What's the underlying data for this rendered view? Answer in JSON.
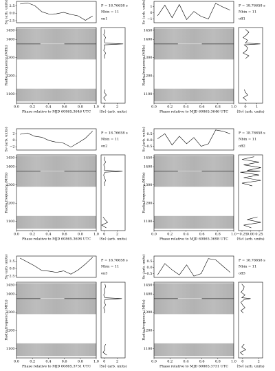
{
  "chart_data": [
    {
      "label": "on1",
      "period_text": "P = 18.76658 s",
      "nbin_text": "Nbin = 11",
      "profile": {
        "type": "line",
        "ylabel": "Sν (arb. units)",
        "x": [
          0.045,
          0.136,
          0.227,
          0.318,
          0.409,
          0.5,
          0.591,
          0.682,
          0.773,
          0.864,
          0.955
        ],
        "values": [
          3.1,
          3.5,
          2.6,
          0.5,
          -0.3,
          -0.2,
          0.3,
          -0.4,
          -0.9,
          -2.4,
          -0.9
        ],
        "xlim": [
          0,
          1
        ],
        "ylim": [
          -3.2,
          4
        ],
        "yticks": [
          2.5,
          {
            "value": 0,
            "label": "0.0"
          },
          {
            "value": -2.5,
            "label": "−2.5"
          }
        ]
      },
      "waterfall": {
        "type": "heatmap",
        "xlabel": "Phase relative to MJD 60865.3646 UTC",
        "ylabel": "Radio frequency (MHz)",
        "xlim": [
          0,
          1
        ],
        "ylim": [
          1050,
          1465
        ],
        "xticks": [
          {
            "value": 0,
            "label": "0.0"
          },
          0.2,
          0.4,
          0.6,
          0.8,
          {
            "value": 1,
            "label": "1.0"
          }
        ],
        "yticks": [
          1100,
          1200,
          1300,
          1400,
          1450
        ],
        "bands": [
          [
            1060,
            1130
          ],
          [
            1290,
            1460
          ]
        ],
        "rfi": 1375
      },
      "spectrum": {
        "type": "line",
        "xlabel": "⟨Sν⟩ (arb. units)",
        "freqs": [
          1065,
          1080,
          1095,
          1110,
          1125,
          1210,
          1295,
          1310,
          1325,
          1340,
          1355,
          1370,
          1375,
          1380,
          1395,
          1410,
          1425,
          1440,
          1455
        ],
        "values": [
          0.2,
          -0.1,
          0.3,
          0.0,
          0.1,
          null,
          0.1,
          0.0,
          0.2,
          -0.1,
          0.1,
          0.0,
          2.9,
          0.1,
          0.0,
          0.2,
          -0.1,
          0.1,
          0.0
        ],
        "xlim": [
          -0.5,
          3.2
        ],
        "xticks": [
          0,
          2
        ]
      }
    },
    {
      "label": "off1",
      "period_text": "P = 18.76658 s",
      "nbin_text": "Nbin = 11",
      "profile": {
        "type": "line",
        "ylabel": "Sν (arb. units)",
        "x": [
          0.045,
          0.136,
          0.227,
          0.318,
          0.409,
          0.5,
          0.591,
          0.682,
          0.773,
          0.864,
          0.955
        ],
        "values": [
          -0.5,
          1.2,
          -0.8,
          1.3,
          -1.1,
          0.2,
          -0.6,
          -1.0,
          1.5,
          0.9,
          0.4
        ],
        "xlim": [
          0,
          1
        ],
        "ylim": [
          -1.6,
          1.8
        ],
        "yticks": [
          1,
          0,
          {
            "value": -1,
            "label": "−1"
          }
        ]
      },
      "waterfall": {
        "type": "heatmap",
        "xlabel": "Phase relative to MJD 60865.3646 UTC",
        "ylabel": "Radio frequency (MHz)",
        "xlim": [
          0,
          1
        ],
        "ylim": [
          1050,
          1465
        ],
        "xticks": [
          {
            "value": 0,
            "label": "0.0"
          },
          0.2,
          0.4,
          0.6,
          0.8,
          {
            "value": 1,
            "label": "1.0"
          }
        ],
        "yticks": [
          1100,
          1200,
          1300,
          1400,
          1450
        ],
        "bands": [
          [
            1060,
            1130
          ],
          [
            1290,
            1460
          ]
        ],
        "rfi": 1375
      },
      "spectrum": {
        "type": "line",
        "xlabel": "⟨Sν⟩ (arb. units)",
        "freqs": [
          1065,
          1080,
          1095,
          1110,
          1125,
          1210,
          1295,
          1310,
          1325,
          1340,
          1355,
          1370,
          1375,
          1380,
          1395,
          1410,
          1425,
          1440,
          1455
        ],
        "values": [
          0.1,
          -0.2,
          0.2,
          0.0,
          -0.1,
          null,
          0.0,
          0.3,
          -0.2,
          0.1,
          0.2,
          -0.1,
          1.3,
          0.0,
          0.2,
          -0.2,
          0.1,
          0.3,
          0.0
        ],
        "xlim": [
          -0.6,
          1.5
        ],
        "xticks": [
          0,
          1
        ]
      }
    },
    {
      "label": "on2",
      "period_text": "P = 18.76658 s",
      "nbin_text": "Nbin = 11",
      "profile": {
        "type": "line",
        "ylabel": "Sν (arb. units)",
        "x": [
          0.045,
          0.136,
          0.227,
          0.318,
          0.409,
          0.5,
          0.591,
          0.682,
          0.773,
          0.864,
          0.955
        ],
        "values": [
          1.8,
          2.2,
          1.2,
          0.9,
          -0.1,
          -0.6,
          -0.9,
          -2.1,
          -0.8,
          0.6,
          2.8
        ],
        "xlim": [
          0,
          1
        ],
        "ylim": [
          -3,
          3.5
        ],
        "yticks": [
          2,
          0,
          {
            "value": -2,
            "label": "−2"
          }
        ]
      },
      "waterfall": {
        "type": "heatmap",
        "xlabel": "Phase relative to MJD 60865.3698 UTC",
        "ylabel": "Radio frequency (MHz)",
        "xlim": [
          0,
          1
        ],
        "ylim": [
          1050,
          1465
        ],
        "xticks": [
          {
            "value": 0,
            "label": "0.0"
          },
          0.2,
          0.4,
          0.6,
          0.8,
          {
            "value": 1,
            "label": "1.0"
          }
        ],
        "yticks": [
          1100,
          1200,
          1300,
          1400,
          1450
        ],
        "bands": [
          [
            1060,
            1130
          ],
          [
            1290,
            1460
          ]
        ],
        "rfi": 1375
      },
      "spectrum": {
        "type": "line",
        "xlabel": "⟨Sν⟩ (arb. units)",
        "freqs": [
          1065,
          1080,
          1095,
          1110,
          1125,
          1210,
          1295,
          1310,
          1325,
          1340,
          1355,
          1370,
          1375,
          1380,
          1395,
          1410,
          1425,
          1440,
          1455
        ],
        "values": [
          0.3,
          -0.4,
          0.5,
          0.1,
          -0.2,
          null,
          0.1,
          0.0,
          0.2,
          0.0,
          -0.1,
          0.1,
          2.8,
          0.0,
          0.1,
          -0.1,
          0.2,
          0.0,
          0.1
        ],
        "xlim": [
          -0.5,
          3.2
        ],
        "xticks": [
          0,
          2
        ]
      }
    },
    {
      "label": "off2",
      "period_text": "P = 18.76658 s",
      "nbin_text": "Nbin = 11",
      "profile": {
        "type": "line",
        "ylabel": "Sν (arb. units)",
        "x": [
          0.045,
          0.136,
          0.227,
          0.318,
          0.409,
          0.5,
          0.591,
          0.682,
          0.773,
          0.864,
          0.955
        ],
        "values": [
          0.1,
          0.5,
          -0.4,
          0.3,
          -0.3,
          0.2,
          -0.5,
          -0.3,
          0.8,
          0.7,
          0.5
        ],
        "xlim": [
          0,
          1
        ],
        "ylim": [
          -0.8,
          0.9
        ],
        "yticks": [
          0.5,
          {
            "value": 0,
            "label": "0.0"
          },
          {
            "value": -0.5,
            "label": "−0.5"
          }
        ]
      },
      "waterfall": {
        "type": "heatmap",
        "xlabel": "Phase relative to MJD 60865.3698 UTC",
        "ylabel": "Radio frequency (MHz)",
        "xlim": [
          0,
          1
        ],
        "ylim": [
          1050,
          1465
        ],
        "xticks": [
          {
            "value": 0,
            "label": "0.0"
          },
          0.2,
          0.4,
          0.6,
          0.8,
          {
            "value": 1,
            "label": "1.0"
          }
        ],
        "yticks": [
          1100,
          1200,
          1300,
          1400,
          1450
        ],
        "bands": [
          [
            1060,
            1130
          ],
          [
            1290,
            1460
          ]
        ],
        "rfi": 1375
      },
      "spectrum": {
        "type": "line",
        "xlabel": "⟨Sν⟩ (arb. units)",
        "freqs": [
          1065,
          1080,
          1095,
          1110,
          1125,
          1210,
          1295,
          1310,
          1325,
          1340,
          1355,
          1370,
          1375,
          1380,
          1395,
          1410,
          1425,
          1440,
          1455
        ],
        "values": [
          0.02,
          -0.2,
          0.3,
          -0.1,
          0.2,
          null,
          0.05,
          -0.25,
          0.3,
          -0.2,
          0.25,
          -0.3,
          0.28,
          -0.1,
          0.3,
          -0.2,
          0.25,
          -0.25,
          0.1
        ],
        "xlim": [
          -0.35,
          0.35
        ],
        "xticks": [
          {
            "value": -0.25,
            "label": "−0.25"
          },
          {
            "value": 0,
            "label": "0.00"
          },
          0.25
        ]
      }
    },
    {
      "label": "on3",
      "period_text": "P = 18.76658 s",
      "nbin_text": "Nbin = 11",
      "profile": {
        "type": "line",
        "ylabel": "Sν (arb. units)",
        "x": [
          0.045,
          0.136,
          0.227,
          0.318,
          0.409,
          0.5,
          0.591,
          0.682,
          0.773,
          0.864,
          0.955
        ],
        "values": [
          3.5,
          2.2,
          0.9,
          -0.7,
          -0.9,
          -1.3,
          -0.8,
          -1.9,
          -0.5,
          1.5,
          3.8
        ],
        "xlim": [
          0,
          1
        ],
        "ylim": [
          -3,
          4.2
        ],
        "yticks": [
          2.5,
          {
            "value": 0,
            "label": "0.0"
          },
          {
            "value": -2.5,
            "label": "−2.5"
          }
        ]
      },
      "waterfall": {
        "type": "heatmap",
        "xlabel": "Phase relative to MJD 60865.3731 UTC",
        "ylabel": "Radio frequency (MHz)",
        "xlim": [
          0,
          1
        ],
        "ylim": [
          1050,
          1465
        ],
        "xticks": [
          {
            "value": 0,
            "label": "0.0"
          },
          0.2,
          0.4,
          0.6,
          0.8,
          {
            "value": 1,
            "label": "1.0"
          }
        ],
        "yticks": [
          1100,
          1200,
          1300,
          1400,
          1450
        ],
        "bands": [
          [
            1060,
            1130
          ],
          [
            1290,
            1460
          ]
        ],
        "rfi": 1375
      },
      "spectrum": {
        "type": "line",
        "xlabel": "⟨Sν⟩ (arb. units)",
        "freqs": [
          1065,
          1080,
          1095,
          1110,
          1125,
          1210,
          1295,
          1310,
          1325,
          1340,
          1355,
          1370,
          1375,
          1380,
          1395,
          1410,
          1425,
          1440,
          1455
        ],
        "values": [
          0.4,
          -0.2,
          0.1,
          0.0,
          0.2,
          null,
          0.0,
          0.1,
          -0.1,
          0.2,
          0.0,
          0.1,
          2.7,
          0.1,
          -0.1,
          0.1,
          0.0,
          0.2,
          0.1
        ],
        "xlim": [
          -0.5,
          3.2
        ],
        "xticks": [
          0,
          2
        ]
      }
    },
    {
      "label": "off3",
      "period_text": "P = 18.76658 s",
      "nbin_text": "Nbin = 11",
      "profile": {
        "type": "line",
        "ylabel": "Sν (arb. units)",
        "x": [
          0.045,
          0.136,
          0.227,
          0.318,
          0.409,
          0.5,
          0.591,
          0.682,
          0.773,
          0.864,
          0.955
        ],
        "values": [
          -0.6,
          0.3,
          -0.2,
          -0.6,
          0.2,
          -0.7,
          -0.5,
          0.7,
          0.6,
          0.1,
          -0.4
        ],
        "xlim": [
          0,
          1
        ],
        "ylim": [
          -0.8,
          0.9
        ],
        "yticks": [
          0.5,
          {
            "value": 0,
            "label": "0.0"
          },
          {
            "value": -0.5,
            "label": "−0.5"
          }
        ]
      },
      "waterfall": {
        "type": "heatmap",
        "xlabel": "Phase relative to MJD 60865.3731 UTC",
        "ylabel": "Radio frequency (MHz)",
        "xlim": [
          0,
          1
        ],
        "ylim": [
          1050,
          1465
        ],
        "xticks": [
          {
            "value": 0,
            "label": "0.0"
          },
          0.2,
          0.4,
          0.6,
          0.8,
          {
            "value": 1,
            "label": "1.0"
          }
        ],
        "yticks": [
          1100,
          1200,
          1300,
          1400,
          1450
        ],
        "bands": [
          [
            1060,
            1130
          ],
          [
            1290,
            1460
          ]
        ],
        "rfi": 1375
      },
      "spectrum": {
        "type": "line",
        "xlabel": "⟨Sν⟩ (arb. units)",
        "freqs": [
          1065,
          1080,
          1095,
          1110,
          1125,
          1210,
          1295,
          1310,
          1325,
          1340,
          1355,
          1370,
          1375,
          1380,
          1395,
          1410,
          1425,
          1440,
          1455
        ],
        "values": [
          0.1,
          -0.3,
          0.4,
          -0.1,
          0.2,
          null,
          0.1,
          -0.2,
          0.3,
          0.0,
          -0.2,
          0.2,
          1.0,
          -0.1,
          0.3,
          -0.2,
          0.1,
          0.2,
          -0.1
        ],
        "xlim": [
          -0.5,
          2.5
        ],
        "xticks": [
          0,
          2
        ]
      }
    }
  ]
}
